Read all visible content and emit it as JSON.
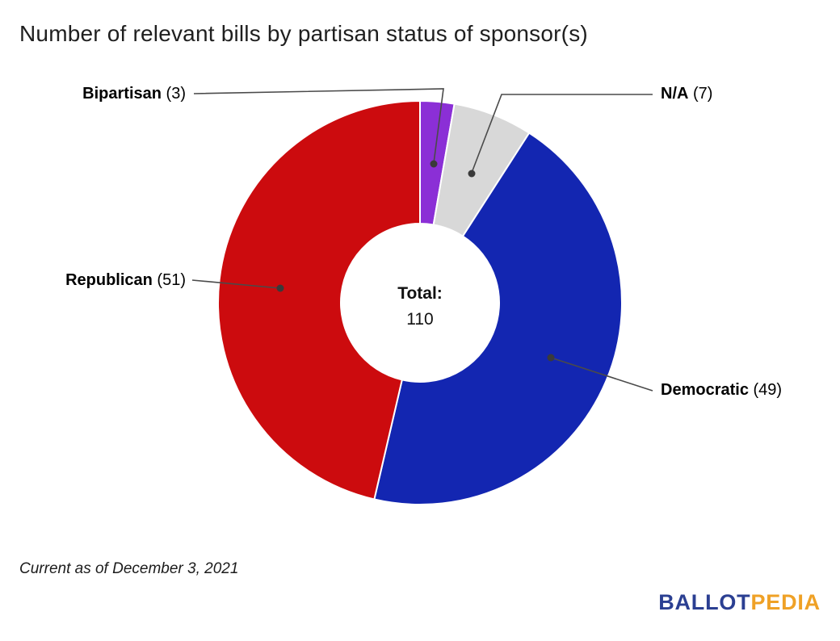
{
  "title": "Number of relevant bills by partisan status of sponsor(s)",
  "footer_note": "Current as of December 3, 2021",
  "logo": {
    "ballot": "BALLOT",
    "pedia": "PEDIA"
  },
  "chart_data": {
    "type": "pie",
    "subtype": "donut",
    "title": "Number of relevant bills by partisan status of sponsor(s)",
    "total": 110,
    "start_angle_deg": 0,
    "direction": "clockwise",
    "legend_position": "outside-callouts",
    "center": {
      "label": "Total:",
      "value": "110"
    },
    "slices": [
      {
        "label": "Bipartisan",
        "value": 3,
        "count_display": "(3)",
        "color": "#8b2fd6"
      },
      {
        "label": "N/A",
        "value": 7,
        "count_display": "(7)",
        "color": "#d8d8d8"
      },
      {
        "label": "Democratic",
        "value": 49,
        "count_display": "(49)",
        "color": "#1326b1"
      },
      {
        "label": "Republican",
        "value": 51,
        "count_display": "(51)",
        "color": "#cc0b0e"
      }
    ]
  }
}
